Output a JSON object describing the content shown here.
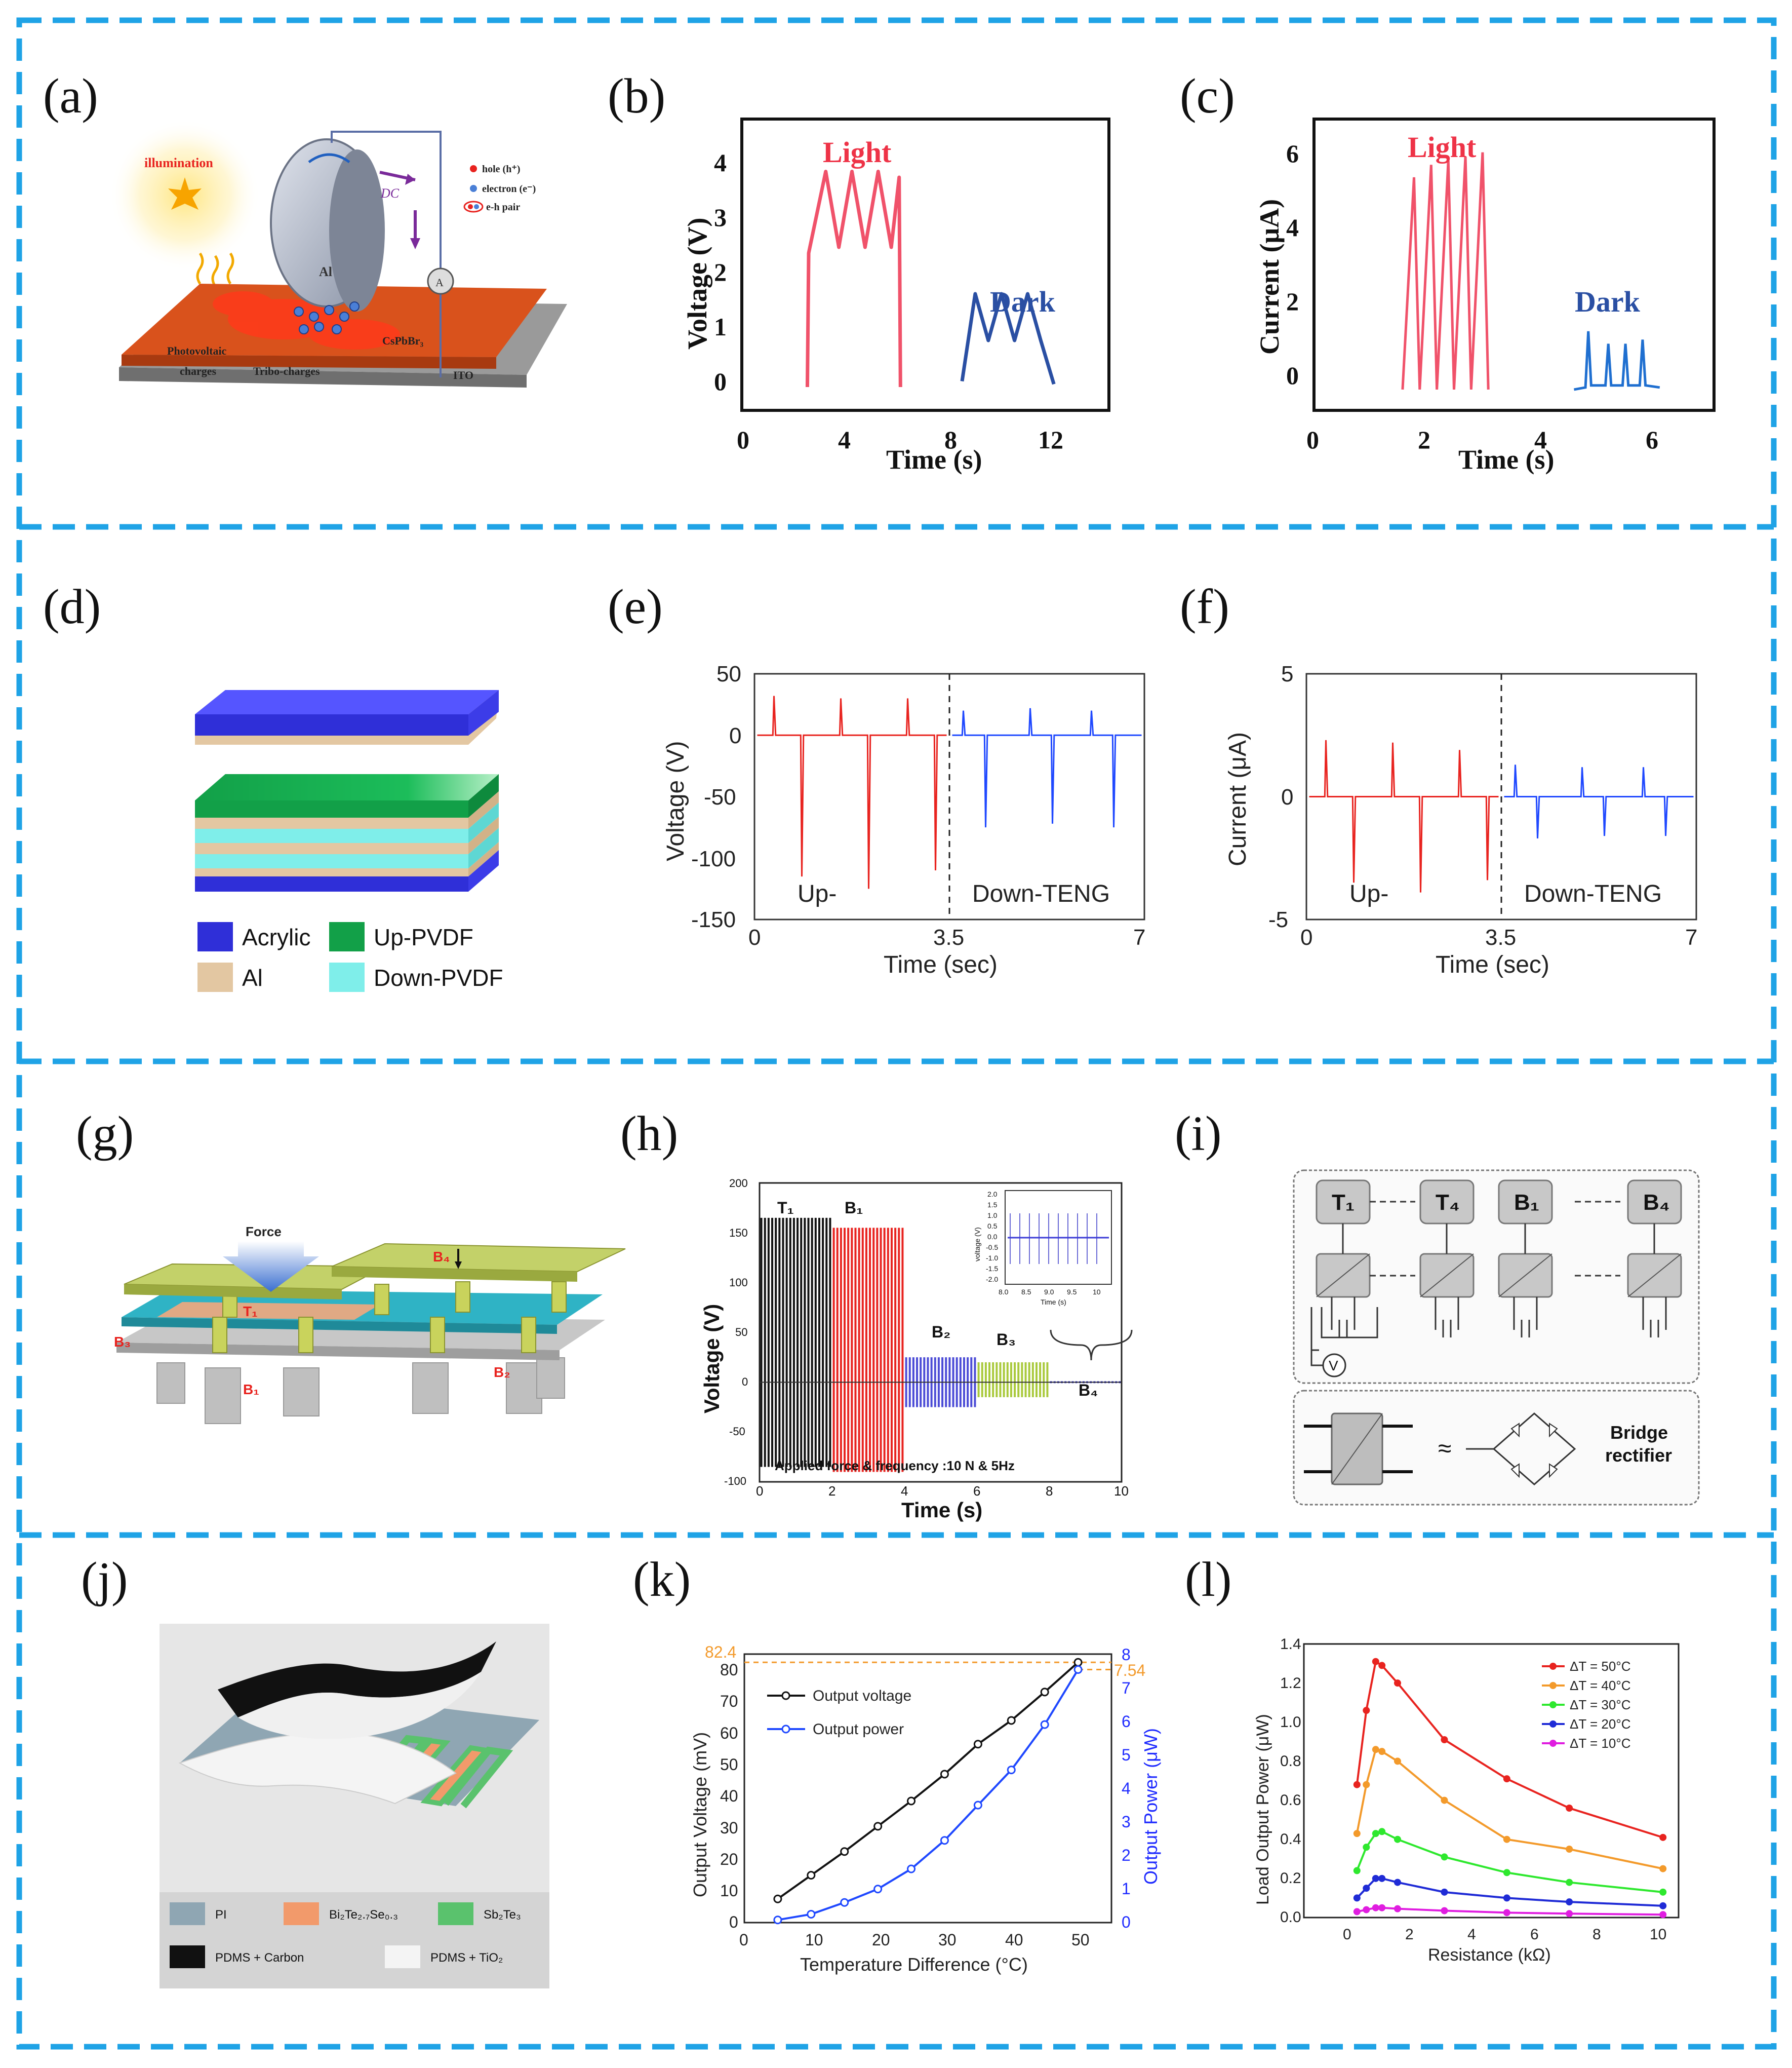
{
  "colors": {
    "frame": "#1fa3e6",
    "light": "#f0526a",
    "dark": "#2a4fa3",
    "red": "#e8231f",
    "blue": "#1f48ff",
    "green": "#14a84a",
    "lime": "#a9c93b",
    "orange": "#f39a2b",
    "magenta": "#e01de0",
    "black": "#111111"
  },
  "panels": {
    "a": "(a)",
    "b": "(b)",
    "c": "(c)",
    "d": "(d)",
    "e": "(e)",
    "f": "(f)",
    "g": "(g)",
    "h": "(h)",
    "i": "(i)",
    "j": "(j)",
    "k": "(k)",
    "l": "(l)"
  },
  "a": {
    "illumination": "illumination",
    "dc": "DC",
    "al": "Al",
    "legend": [
      "hole (h⁺)",
      "electron (e⁻)",
      "e-h pair"
    ],
    "photo": "Photovoltaic",
    "charges": "charges",
    "tribo": "Tribo-charges",
    "cspbbr": "CsPbBr₃",
    "ito": "ITO",
    "ammeter": "A"
  },
  "b": {
    "ylabel": "Voltage (V)",
    "xlabel": "Time (s)",
    "xticks": [
      "0",
      "4",
      "8",
      "12"
    ],
    "yticks": [
      "0",
      "1",
      "2",
      "3",
      "4"
    ],
    "light": "Light",
    "dark": "Dark"
  },
  "c": {
    "ylabel": "Current (μA)",
    "xlabel": "Time (s)",
    "xticks": [
      "0",
      "2",
      "4",
      "6"
    ],
    "yticks": [
      "0",
      "2",
      "4",
      "6"
    ],
    "light": "Light",
    "dark": "Dark"
  },
  "d": {
    "legend": [
      "Acrylic",
      "Up-PVDF",
      "Al",
      "Down-PVDF"
    ]
  },
  "e": {
    "ylabel": "Voltage (V)",
    "xlabel": "Time (sec)",
    "xticks": [
      "0",
      "3.5",
      "7"
    ],
    "yticks": [
      "50",
      "0",
      "-50",
      "-100",
      "-150"
    ],
    "up": "Up-",
    "down": "Down-TENG"
  },
  "f": {
    "ylabel": "Current (μA)",
    "xlabel": "Time (sec)",
    "xticks": [
      "0",
      "3.5",
      "7"
    ],
    "yticks": [
      "5",
      "0",
      "-5"
    ],
    "up": "Up-",
    "down": "Down-TENG"
  },
  "g": {
    "force": "Force",
    "t1": "T₁",
    "b1": "B₁",
    "b2": "B₂",
    "b3": "B₃",
    "b4": "B₄"
  },
  "h": {
    "ylabel": "Voltage (V)",
    "xlabel": "Time (s)",
    "xticks": [
      "0",
      "2",
      "4",
      "6",
      "8",
      "10"
    ],
    "yticks": [
      "200",
      "150",
      "100",
      "50",
      "0",
      "-50",
      "-100"
    ],
    "note": "Applied force & frequency :10 N & 5Hz",
    "t1": "T₁",
    "b1": "B₁",
    "b2": "B₂",
    "b3": "B₃",
    "b4": "B₄",
    "inset_ylabel": "voltage (V)",
    "inset_xlabel": "Time (s)",
    "inset_yticks": [
      "2.0",
      "1.5",
      "1.0",
      "0.5",
      "0.0",
      "-0.5",
      "-1.0",
      "-1.5",
      "-2.0"
    ],
    "inset_xticks": [
      "8.0",
      "8.5",
      "9.0",
      "9.5",
      "10"
    ]
  },
  "i": {
    "units": [
      "T₁",
      "T₄",
      "B₁",
      "B₄"
    ],
    "v": "V",
    "approx": "≈",
    "bridge1": "Bridge",
    "bridge2": "rectifier"
  },
  "j": {
    "legend": [
      "PI",
      "Bi₂Te₂.₇Se₀.₃",
      "Sb₂Te₃",
      "PDMS + Carbon",
      "PDMS + TiO₂"
    ]
  },
  "k": {
    "ylabel": "Output Voltage (mV)",
    "y2label": "Output Power (μW)",
    "xlabel": "Temperature Difference (°C)",
    "xticks": [
      "0",
      "10",
      "20",
      "30",
      "40",
      "50"
    ],
    "yticks": [
      "0",
      "10",
      "20",
      "30",
      "40",
      "50",
      "60",
      "70",
      "80"
    ],
    "y2ticks": [
      "0",
      "1",
      "2",
      "3",
      "4",
      "5",
      "6",
      "7",
      "8"
    ],
    "max_v": "82.4",
    "max_p": "7.54",
    "legend": [
      "Output voltage",
      "Output power"
    ]
  },
  "l": {
    "ylabel": "Load Output Power (μW)",
    "xlabel": "Resistance (kΩ)",
    "xticks": [
      "0",
      "2",
      "4",
      "6",
      "8",
      "10"
    ],
    "yticks": [
      "0.0",
      "0.2",
      "0.4",
      "0.6",
      "0.8",
      "1.0",
      "1.2",
      "1.4"
    ],
    "legend": [
      "ΔT = 50°C",
      "ΔT = 40°C",
      "ΔT = 30°C",
      "ΔT = 20°C",
      "ΔT = 10°C"
    ]
  },
  "chart_data": [
    {
      "panel": "b",
      "type": "line",
      "title": "",
      "xlabel": "Time (s)",
      "ylabel": "Voltage (V)",
      "xlim": [
        0,
        14
      ],
      "ylim": [
        -0.4,
        4.6
      ],
      "series": [
        {
          "name": "Light",
          "x": [
            2.5,
            2.55,
            3.2,
            3.7,
            4.2,
            4.7,
            5.2,
            5.7,
            6.0,
            6.05
          ],
          "y": [
            0,
            2.3,
            3.7,
            2.4,
            3.7,
            2.4,
            3.7,
            2.4,
            3.6,
            0
          ]
        },
        {
          "name": "Dark",
          "x": [
            8.4,
            8.9,
            9.4,
            9.9,
            10.4,
            10.9,
            11.4,
            11.9
          ],
          "y": [
            0.1,
            1.6,
            0.8,
            1.6,
            0.8,
            1.6,
            0.8,
            0.05
          ]
        }
      ]
    },
    {
      "panel": "c",
      "type": "line",
      "title": "",
      "xlabel": "Time (s)",
      "ylabel": "Current (μA)",
      "xlim": [
        0,
        7
      ],
      "ylim": [
        -0.5,
        6.5
      ],
      "series": [
        {
          "name": "Light",
          "x": [
            1.55,
            1.75,
            1.85,
            2.05,
            2.15,
            2.35,
            2.45,
            2.65,
            2.75,
            2.95,
            3.05
          ],
          "y": [
            0,
            5.1,
            0,
            5.4,
            0,
            5.5,
            0,
            5.6,
            0,
            5.7,
            0
          ]
        },
        {
          "name": "Dark",
          "x": [
            4.55,
            4.75,
            4.8,
            4.85,
            5.1,
            5.15,
            5.2,
            5.4,
            5.45,
            5.5,
            5.7,
            5.75,
            5.8,
            6.05
          ],
          "y": [
            0,
            0.05,
            1.4,
            0.1,
            0.1,
            1.1,
            0.1,
            0.1,
            1.1,
            0.1,
            0.1,
            1.2,
            0.1,
            0.05
          ]
        }
      ]
    },
    {
      "panel": "e",
      "type": "line",
      "title": "",
      "xlabel": "Time (sec)",
      "ylabel": "Voltage (V)",
      "xlim": [
        0,
        7
      ],
      "ylim": [
        -150,
        50
      ],
      "series": [
        {
          "name": "Up-TENG",
          "peaks_x": [
            0.35,
            0.85,
            1.55,
            2.05,
            2.75,
            3.25
          ],
          "peaks_y": [
            32,
            -115,
            30,
            -125,
            30,
            -110
          ]
        },
        {
          "name": "Down-TENG",
          "peaks_x": [
            3.75,
            4.15,
            4.95,
            5.35,
            6.05,
            6.45
          ],
          "peaks_y": [
            20,
            -75,
            22,
            -72,
            20,
            -75
          ]
        }
      ]
    },
    {
      "panel": "f",
      "type": "line",
      "title": "",
      "xlabel": "Time (sec)",
      "ylabel": "Current (μA)",
      "xlim": [
        0,
        7
      ],
      "ylim": [
        -5,
        5
      ],
      "series": [
        {
          "name": "Up-TENG",
          "peaks_x": [
            0.35,
            0.85,
            1.55,
            2.05,
            2.75,
            3.25
          ],
          "peaks_y": [
            2.3,
            -3.5,
            2.2,
            -3.9,
            1.9,
            -3.4
          ]
        },
        {
          "name": "Down-TENG",
          "peaks_x": [
            3.75,
            4.15,
            4.95,
            5.35,
            6.05,
            6.45
          ],
          "peaks_y": [
            1.3,
            -1.7,
            1.2,
            -1.6,
            1.2,
            -1.6
          ]
        }
      ]
    },
    {
      "panel": "h",
      "type": "line",
      "title": "",
      "xlabel": "Time (s)",
      "ylabel": "Voltage (V)",
      "xlim": [
        0,
        10
      ],
      "ylim": [
        -100,
        200
      ],
      "series": [
        {
          "name": "T1",
          "x_range": [
            0,
            2
          ],
          "max": 165,
          "min": -85
        },
        {
          "name": "B1",
          "x_range": [
            2,
            4
          ],
          "max": 155,
          "min": -90
        },
        {
          "name": "B2",
          "x_range": [
            4,
            6
          ],
          "max": 25,
          "min": -25
        },
        {
          "name": "B3",
          "x_range": [
            6,
            8
          ],
          "max": 20,
          "min": -15
        },
        {
          "name": "B4",
          "x_range": [
            8,
            10
          ],
          "max": 1,
          "min": -1
        }
      ]
    },
    {
      "panel": "k",
      "type": "line",
      "title": "",
      "xlabel": "Temperature Difference (°C)",
      "ylabel": "Output Voltage (mV)",
      "y2label": "Output Power (μW)",
      "xlim": [
        0,
        55
      ],
      "ylim": [
        0,
        85
      ],
      "y2lim": [
        0,
        8
      ],
      "x": [
        5,
        10,
        15,
        20,
        25,
        30,
        35,
        40,
        45,
        50
      ],
      "series": [
        {
          "name": "Output voltage",
          "axis": "left",
          "values": [
            7.5,
            15,
            22.5,
            30.5,
            38.5,
            47,
            56.5,
            64,
            73,
            82.4
          ]
        },
        {
          "name": "Output power",
          "axis": "right",
          "values": [
            0.08,
            0.25,
            0.6,
            1.0,
            1.6,
            2.45,
            3.5,
            4.55,
            5.9,
            7.54
          ]
        }
      ]
    },
    {
      "panel": "l",
      "type": "line",
      "title": "",
      "xlabel": "Resistance (kΩ)",
      "ylabel": "Load Output Power (μW)",
      "xlim": [
        -1.5,
        10.5
      ],
      "ylim": [
        0,
        1.4
      ],
      "x": [
        0.2,
        0.5,
        0.8,
        1,
        1.5,
        3,
        5,
        7,
        10
      ],
      "series": [
        {
          "name": "ΔT = 50°C",
          "values": [
            0.68,
            1.06,
            1.31,
            1.29,
            1.2,
            0.91,
            0.71,
            0.56,
            0.41
          ]
        },
        {
          "name": "ΔT = 40°C",
          "values": [
            0.43,
            0.68,
            0.86,
            0.85,
            0.8,
            0.6,
            0.4,
            0.35,
            0.25
          ]
        },
        {
          "name": "ΔT = 30°C",
          "values": [
            0.24,
            0.36,
            0.43,
            0.44,
            0.4,
            0.31,
            0.23,
            0.18,
            0.13
          ]
        },
        {
          "name": "ΔT = 20°C",
          "values": [
            0.1,
            0.15,
            0.2,
            0.2,
            0.18,
            0.13,
            0.1,
            0.08,
            0.06
          ]
        },
        {
          "name": "ΔT = 10°C",
          "values": [
            0.03,
            0.04,
            0.05,
            0.05,
            0.045,
            0.035,
            0.025,
            0.02,
            0.015
          ]
        }
      ]
    }
  ]
}
